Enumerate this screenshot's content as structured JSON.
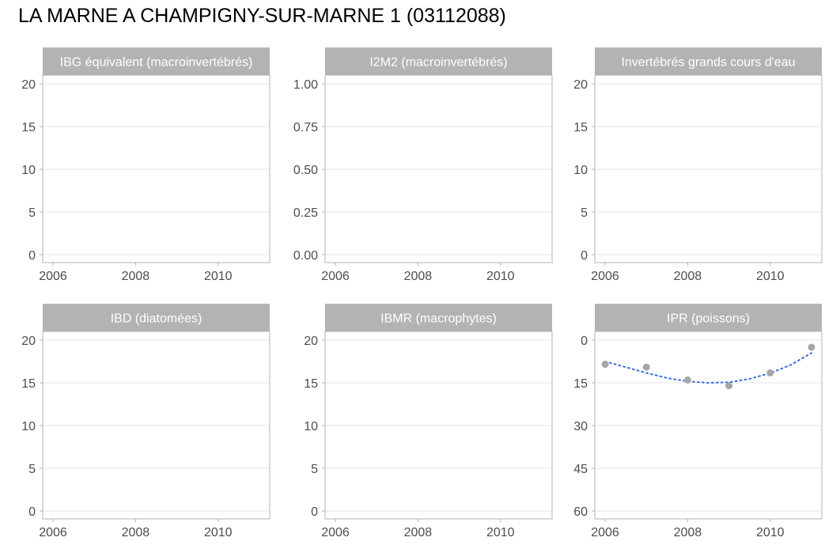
{
  "title": "LA MARNE A CHAMPIGNY-SUR-MARNE 1 (03112088)",
  "colors": {
    "strip_bg": "#b3b3b3",
    "strip_text": "#ffffff",
    "panel_border": "#b3b3b3",
    "grid": "#e6e6e6",
    "tick_text": "#4d4d4d",
    "point": "#a6a6a6",
    "trend": "#3a6fd8"
  },
  "chart_data": [
    {
      "type": "scatter",
      "title": "IBG équivalent (macroinvertébrés)",
      "xlim": [
        2005.75,
        2011.25
      ],
      "x_ticks": [
        2006,
        2008,
        2010
      ],
      "ylim": [
        0,
        20
      ],
      "y_reversed": false,
      "y_ticks": [
        0,
        5,
        10,
        15,
        20
      ],
      "y_tick_labels": [
        "0",
        "5",
        "10",
        "15",
        "20"
      ],
      "points": [],
      "trend": []
    },
    {
      "type": "scatter",
      "title": "I2M2 (macroinvertébrés)",
      "xlim": [
        2005.75,
        2011.25
      ],
      "x_ticks": [
        2006,
        2008,
        2010
      ],
      "ylim": [
        0,
        1
      ],
      "y_reversed": false,
      "y_ticks": [
        0,
        0.25,
        0.5,
        0.75,
        1
      ],
      "y_tick_labels": [
        "0.00",
        "0.25",
        "0.50",
        "0.75",
        "1.00"
      ],
      "points": [],
      "trend": []
    },
    {
      "type": "scatter",
      "title": "Invertébrés grands cours d'eau",
      "xlim": [
        2005.75,
        2011.25
      ],
      "x_ticks": [
        2006,
        2008,
        2010
      ],
      "ylim": [
        0,
        20
      ],
      "y_reversed": false,
      "y_ticks": [
        0,
        5,
        10,
        15,
        20
      ],
      "y_tick_labels": [
        "0",
        "5",
        "10",
        "15",
        "20"
      ],
      "points": [],
      "trend": []
    },
    {
      "type": "scatter",
      "title": "IBD (diatomées)",
      "xlim": [
        2005.75,
        2011.25
      ],
      "x_ticks": [
        2006,
        2008,
        2010
      ],
      "ylim": [
        0,
        20
      ],
      "y_reversed": false,
      "y_ticks": [
        0,
        5,
        10,
        15,
        20
      ],
      "y_tick_labels": [
        "0",
        "5",
        "10",
        "15",
        "20"
      ],
      "points": [],
      "trend": []
    },
    {
      "type": "scatter",
      "title": "IBMR (macrophytes)",
      "xlim": [
        2005.75,
        2011.25
      ],
      "x_ticks": [
        2006,
        2008,
        2010
      ],
      "ylim": [
        0,
        20
      ],
      "y_reversed": false,
      "y_ticks": [
        0,
        5,
        10,
        15,
        20
      ],
      "y_tick_labels": [
        "0",
        "5",
        "10",
        "15",
        "20"
      ],
      "points": [],
      "trend": []
    },
    {
      "type": "scatter",
      "title": "IPR (poissons)",
      "xlim": [
        2005.75,
        2011.25
      ],
      "x_ticks": [
        2006,
        2008,
        2010
      ],
      "ylim": [
        0,
        60
      ],
      "y_reversed": true,
      "y_ticks": [
        0,
        15,
        30,
        45,
        60
      ],
      "y_tick_labels": [
        "0",
        "15",
        "30",
        "45",
        "60"
      ],
      "points": [
        {
          "x": 2006,
          "y": 8.5
        },
        {
          "x": 2007,
          "y": 9.5
        },
        {
          "x": 2008,
          "y": 14.0
        },
        {
          "x": 2009,
          "y": 16.0
        },
        {
          "x": 2010,
          "y": 11.5
        },
        {
          "x": 2011,
          "y": 2.5
        }
      ],
      "trend": [
        {
          "x": 2006,
          "y": 7.5
        },
        {
          "x": 2006.5,
          "y": 9.5
        },
        {
          "x": 2007,
          "y": 11.5
        },
        {
          "x": 2007.5,
          "y": 13.3
        },
        {
          "x": 2008,
          "y": 14.5
        },
        {
          "x": 2008.5,
          "y": 15.0
        },
        {
          "x": 2009,
          "y": 14.8
        },
        {
          "x": 2009.5,
          "y": 13.6
        },
        {
          "x": 2010,
          "y": 11.6
        },
        {
          "x": 2010.5,
          "y": 8.7
        },
        {
          "x": 2011,
          "y": 4.5
        }
      ]
    }
  ]
}
